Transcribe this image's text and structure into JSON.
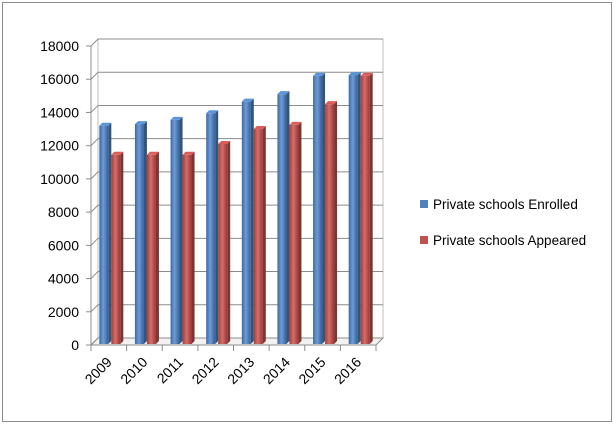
{
  "chart_data": {
    "type": "bar",
    "categories": [
      "2009",
      "2010",
      "2011",
      "2012",
      "2013",
      "2014",
      "2015",
      "2016"
    ],
    "series": [
      {
        "name": "Private schools Enrolled",
        "color": "#4f81bd",
        "values": [
          13200,
          13300,
          13550,
          13950,
          14650,
          15100,
          16200,
          16250
        ]
      },
      {
        "name": "Private schools Appeared",
        "color": "#c0504d",
        "values": [
          11450,
          11450,
          11450,
          12100,
          13000,
          13250,
          14500,
          16200
        ]
      }
    ],
    "yticks": [
      "0",
      "2000",
      "4000",
      "6000",
      "8000",
      "10000",
      "12000",
      "14000",
      "16000",
      "18000"
    ],
    "ylim": [
      0,
      18000
    ],
    "title": "",
    "xlabel": "",
    "ylabel": "",
    "grid": true,
    "legend_position": "right",
    "style": "3d-clustered-column"
  }
}
